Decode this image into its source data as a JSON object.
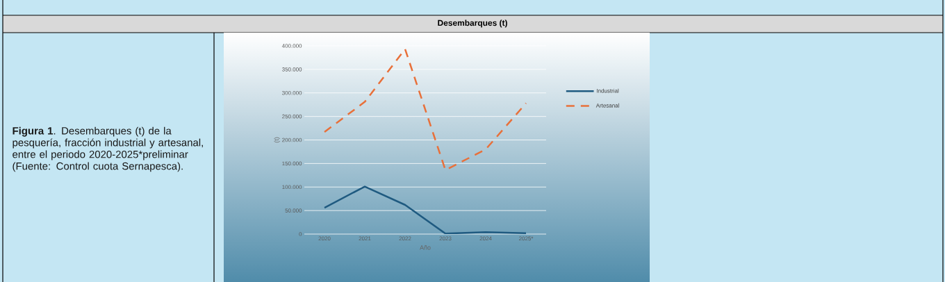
{
  "chart_data": {
    "type": "line",
    "title": "Desembarques (t)",
    "xlabel": "Año",
    "ylabel": "(t)",
    "categories": [
      "2020",
      "2021",
      "2022",
      "2023",
      "2024",
      "2025*"
    ],
    "series": [
      {
        "name": "Industrial",
        "color": "#1f5a80",
        "line_style": "solid",
        "values": [
          56000,
          101000,
          62000,
          1000,
          4000,
          2000
        ]
      },
      {
        "name": "Artesanal",
        "color": "#e8703a",
        "line_style": "dashed",
        "values": [
          217000,
          281000,
          393000,
          136000,
          180000,
          278000
        ]
      }
    ],
    "ylim": [
      0,
      400000
    ],
    "yticks": [
      0,
      {
        "value": 50000,
        "label": "50.000"
      },
      {
        "value": 100000,
        "label": "100.000"
      },
      {
        "value": 150000,
        "label": "150.000"
      },
      {
        "value": 200000,
        "label": "200.000"
      },
      {
        "value": 250000,
        "label": "250.000"
      },
      {
        "value": 300000,
        "label": "300.000"
      },
      {
        "value": 350000,
        "label": "350.000"
      },
      {
        "value": 400000,
        "label": "400.000"
      }
    ],
    "grid": "y",
    "legend": "right",
    "annotations": [
      "**Figura 1**. Desembarques (t) de la pesquería, fracción industrial y artesanal, entre el periodo 2020-2025*preliminar (Fuente: Control cuota Sernapesca)."
    ]
  }
}
